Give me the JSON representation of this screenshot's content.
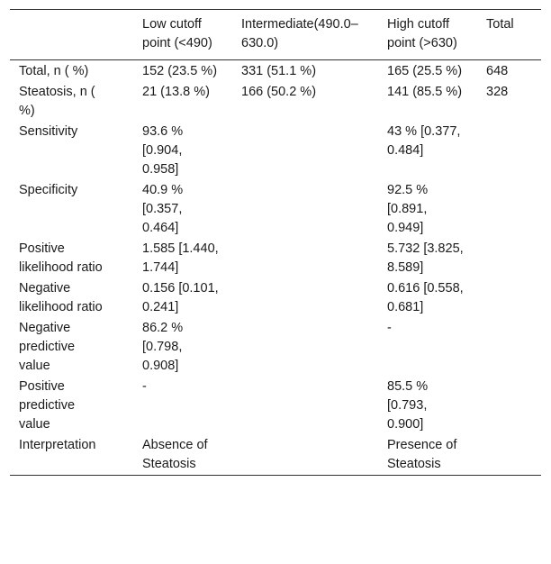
{
  "table": {
    "headers": [
      "",
      "Low cutoff point (<490)",
      "Intermediate(490.0–630.0)",
      "High cutoff point (>630)",
      "Total"
    ],
    "rows": [
      {
        "label": "Total, n ( %)",
        "low": "152 (23.5 %)",
        "intermediate": "331 (51.1 %)",
        "high": "165 (25.5 %)",
        "total": "648"
      },
      {
        "label": "Steatosis, n ( %)",
        "low": "21 (13.8 %)",
        "intermediate": "166 (50.2 %)",
        "high": "141 (85.5 %)",
        "total": "328"
      },
      {
        "label": "Sensitivity",
        "low": "93.6 % [0.904, 0.958]",
        "intermediate": "",
        "high": "43 % [0.377, 0.484]",
        "total": ""
      },
      {
        "label": "Specificity",
        "low": "40.9 % [0.357, 0.464]",
        "intermediate": "",
        "high": "92.5 % [0.891, 0.949]",
        "total": ""
      },
      {
        "label": "Positive likelihood ratio",
        "low": "1.585 [1.440, 1.744]",
        "intermediate": "",
        "high": "5.732 [3.825, 8.589]",
        "total": ""
      },
      {
        "label": "Negative likelihood ratio",
        "low": "0.156 [0.101, 0.241]",
        "intermediate": "",
        "high": "0.616 [0.558, 0.681]",
        "total": ""
      },
      {
        "label": "Negative predictive value",
        "low": "86.2 % [0.798, 0.908]",
        "intermediate": "",
        "high": "-",
        "total": ""
      },
      {
        "label": "Positive predictive value",
        "low": "-",
        "intermediate": "",
        "high": "85.5 % [0.793, 0.900]",
        "total": ""
      },
      {
        "label": "Interpretation",
        "low": "Absence of Steatosis",
        "intermediate": "",
        "high": "Presence of Steatosis",
        "total": ""
      }
    ]
  }
}
